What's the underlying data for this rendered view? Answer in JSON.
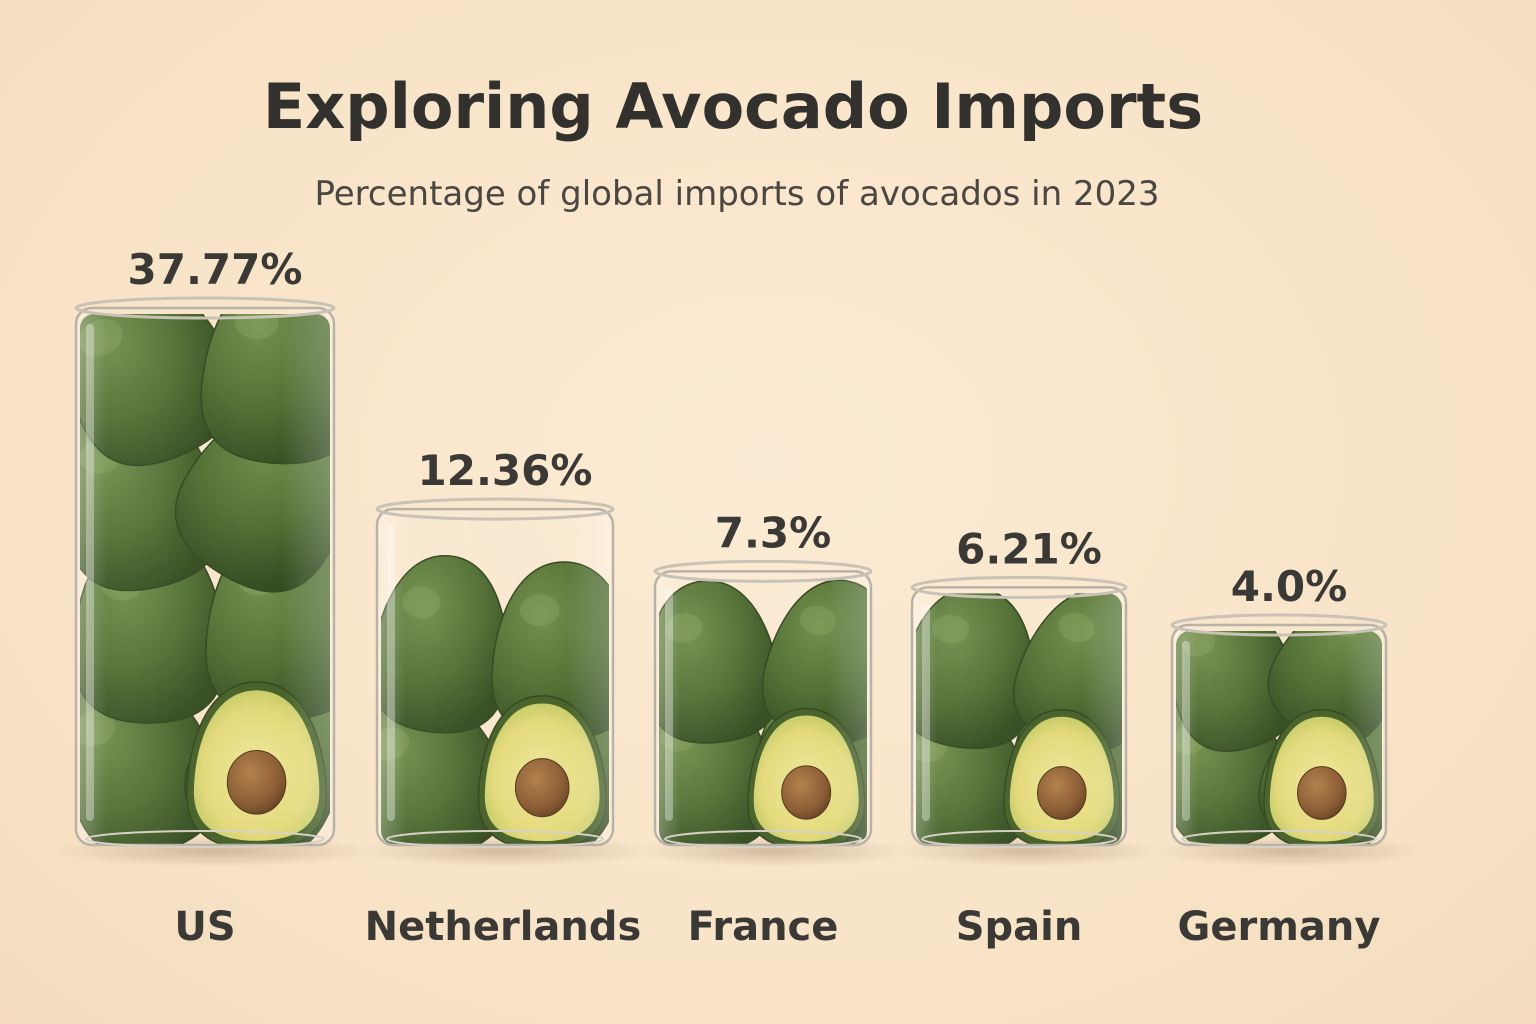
{
  "chart_data": {
    "type": "bar",
    "title": "Exploring Avocado Imports",
    "subtitle": "Percentage of global imports of avocados in 2023",
    "categories": [
      "US",
      "Netherlands",
      "France",
      "Spain",
      "Germany"
    ],
    "values": [
      37.77,
      12.36,
      7.3,
      6.21,
      4.0
    ],
    "value_labels": [
      "37.77%",
      "12.36%",
      "7.3%",
      "6.21%",
      "4.0%"
    ],
    "xlabel": "",
    "ylabel": "",
    "grid": false,
    "legend": "none",
    "colors": {
      "background": "#fae8cf",
      "glass": "#ffffff",
      "glass_edge": "#b9b2a6",
      "avocado_skin": "#4d6b2c",
      "avocado_skin_dark": "#2f4a1a",
      "avocado_flesh": "#e6e08a",
      "avocado_pit": "#8a5a2b",
      "text": "#3b3935"
    },
    "icons": [
      "glass-jar-icon",
      "avocado-icon",
      "avocado-half-icon"
    ]
  }
}
